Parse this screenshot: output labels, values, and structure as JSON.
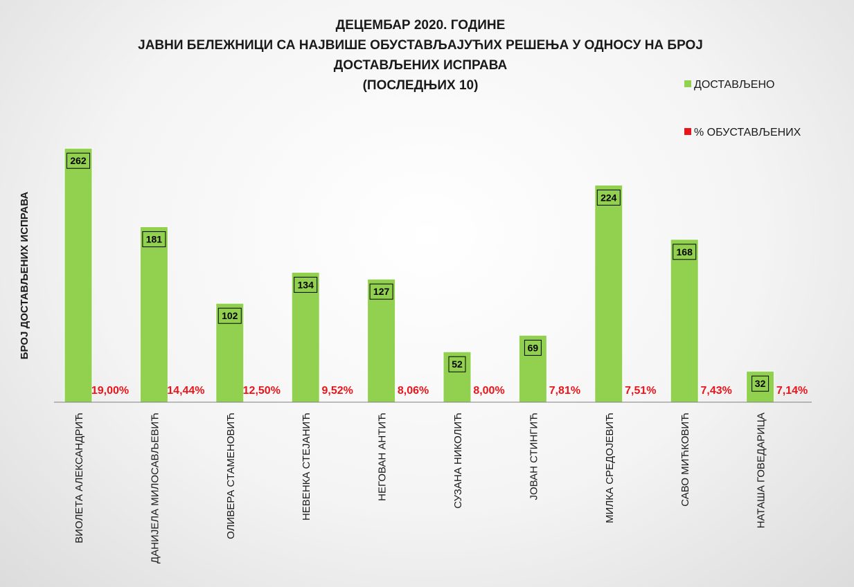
{
  "chart_data": {
    "type": "bar",
    "title_lines": [
      "ДЕЦЕМБАР 2020. ГОДИНЕ",
      "ЈАВНИ БЕЛЕЖНИЦИ СА НАЈВИШЕ ОБУСТАВЉАЈУЋИХ РЕШЕЊА У ОДНОСУ НА БРОЈ",
      "ДОСТАВЉЕНИХ ИСПРАВА",
      "(ПОСЛЕДЊИХ 10)"
    ],
    "ylabel": "БРОЈ ДОСТАВЉЕНИХ ИСПРАВА",
    "xlabel": "",
    "ylim": [
      0,
      300
    ],
    "grid": false,
    "legend_position": "top-right",
    "categories": [
      "ВИОЛЕТА АЛЕКСАНДРИЋ",
      "ДАНИЈЕЛА МИЛОСАВЉЕВИЋ",
      "ОЛИВЕРА СТАМЕНОВИЋ",
      "НЕВЕНКА СТЕЈАНИЋ",
      "НЕГОВАН АНТИЋ",
      "СУЗАНА НИКОЛИЋ",
      "ЈОВАН СТИНГИЋ",
      "МИЛКА СРЕДОЈЕВИЋ",
      "САВО МИЋКОВИЋ",
      "НАТАША ГОВЕДАРИЦА"
    ],
    "series": [
      {
        "name": "ДОСТАВЉЕНО",
        "color": "#92d050",
        "values": [
          262,
          181,
          102,
          134,
          127,
          52,
          69,
          224,
          168,
          32
        ]
      },
      {
        "name": "% ОБУСТАВЉЕНИХ",
        "color": "#e8151b",
        "values": [
          "19,00%",
          "14,44%",
          "12,50%",
          "9,52%",
          "8,06%",
          "8,00%",
          "7,81%",
          "7,51%",
          "7,43%",
          "7,14%"
        ]
      }
    ]
  }
}
